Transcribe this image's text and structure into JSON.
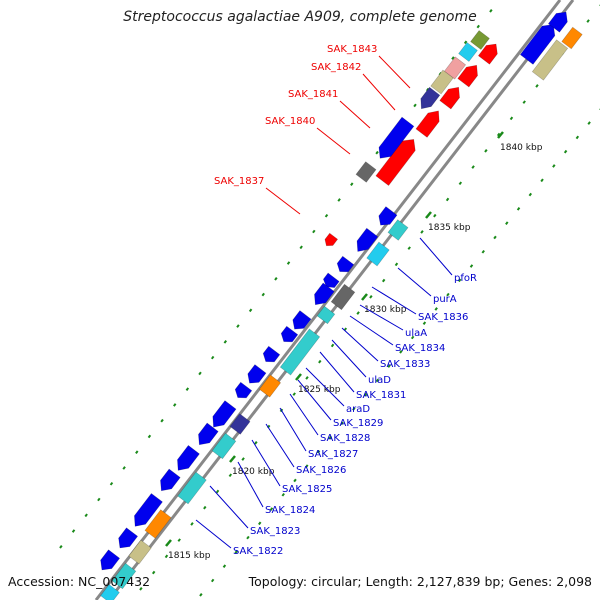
{
  "title": "Streptococcus agalactiae A909, complete genome",
  "footer": {
    "accession_label": "Accession:",
    "accession": "NC_007432",
    "stats": "Topology: circular; Length: 2,127,839 bp; Genes: 2,098"
  },
  "colors": {
    "backbone": "#888888",
    "tick": "#1a8a1a",
    "scale_text": "#111111",
    "gene_blue": "#0000ee",
    "gene_cyan": "#33cccc",
    "gene_red": "#ff0000",
    "gene_orange": "#ff8800",
    "gene_navy": "#333399",
    "gene_gray": "#666666",
    "gene_khaki": "#c8c088",
    "gene_pink": "#f0a0a0",
    "gene_sky": "#22ccee",
    "gene_olive": "#779933",
    "label_red": "#ee0000",
    "label_blue": "#0000cc"
  },
  "scale_labels": [
    "1840 kbp",
    "1835 kbp",
    "1830 kbp",
    "1825 kbp",
    "1820 kbp",
    "1815 kbp"
  ],
  "top_labels": [
    "SAK_1843",
    "SAK_1842",
    "SAK_1841",
    "SAK_1840",
    "SAK_1837"
  ],
  "bottom_labels": [
    "pfoR",
    "purA",
    "SAK_1836",
    "ulaA",
    "SAK_1834",
    "SAK_1833",
    "ulaD",
    "SAK_1831",
    "araD",
    "SAK_1829",
    "SAK_1828",
    "SAK_1827",
    "SAK_1826",
    "SAK_1825",
    "SAK_1824",
    "SAK_1823",
    "SAK_1822"
  ]
}
